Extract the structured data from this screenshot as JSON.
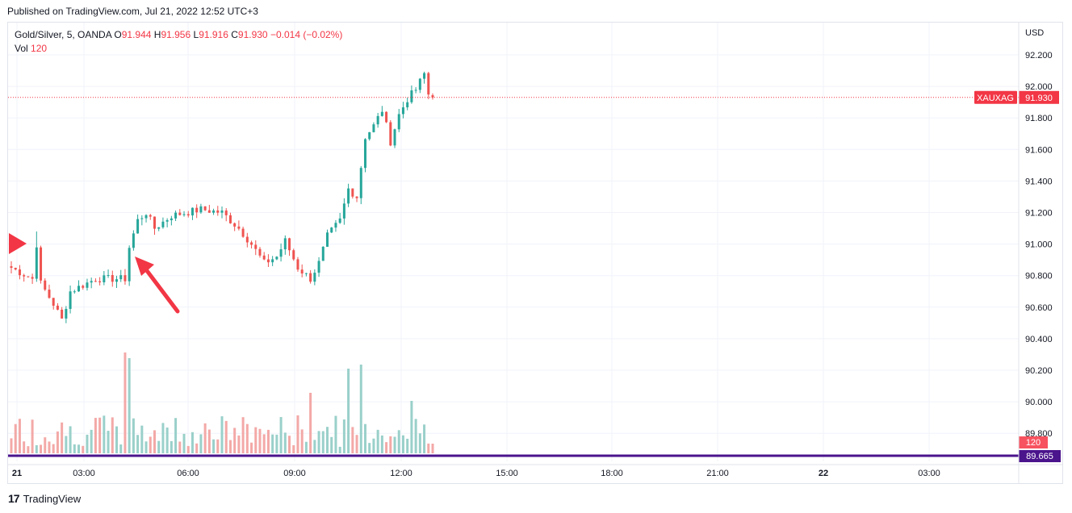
{
  "published": "Published on TradingView.com, Jul 21, 2022 12:52 UTC+3",
  "legend": {
    "symbol": "Gold/Silver, 5, OANDA",
    "o_label": "O",
    "o_value": "91.944",
    "h_label": "H",
    "h_value": "91.956",
    "l_label": "L",
    "l_value": "91.916",
    "c_label": "C",
    "c_value": "91.930",
    "change": "−0.014 (−0.02%)",
    "vol_label": "Vol",
    "vol_value": "120"
  },
  "footer": {
    "brand": "TradingView",
    "logo_text": "17"
  },
  "colors": {
    "up": "#26a69a",
    "down": "#ef5350",
    "up_vol": "#9ad0ca",
    "down_vol": "#f3a9a7",
    "price_tag": "#f23645",
    "purple": "#4a148c",
    "arrow": "#f23645"
  },
  "chart_data": {
    "type": "candlestick",
    "currency": "USD",
    "y_ticks": [
      "92.200",
      "92.000",
      "91.800",
      "91.600",
      "91.400",
      "91.200",
      "91.000",
      "90.800",
      "90.600",
      "90.400",
      "90.200",
      "90.000",
      "89.800"
    ],
    "ylim": [
      89.665,
      92.33
    ],
    "x_ticks": [
      "21",
      "03:00",
      "06:00",
      "09:00",
      "12:00",
      "15:00",
      "18:00",
      "21:00",
      "22",
      "03:00"
    ],
    "last_price": {
      "symbol_tag": "XAUXAG",
      "value": "91.930"
    },
    "volume_tag": "120",
    "purple_line": {
      "value": "89.665"
    },
    "grid": true,
    "waypoints": [
      [
        0,
        90.85
      ],
      [
        5,
        90.78
      ],
      [
        6,
        91.0
      ],
      [
        7,
        90.75
      ],
      [
        10,
        90.62
      ],
      [
        12,
        90.52
      ],
      [
        14,
        90.7
      ],
      [
        20,
        90.78
      ],
      [
        27,
        90.78
      ],
      [
        28,
        90.98
      ],
      [
        30,
        91.15
      ],
      [
        32,
        91.2
      ],
      [
        34,
        91.1
      ],
      [
        38,
        91.18
      ],
      [
        45,
        91.22
      ],
      [
        50,
        91.2
      ],
      [
        54,
        91.1
      ],
      [
        57,
        91.0
      ],
      [
        60,
        90.88
      ],
      [
        63,
        90.92
      ],
      [
        65,
        91.02
      ],
      [
        68,
        90.85
      ],
      [
        71,
        90.78
      ],
      [
        73,
        90.88
      ],
      [
        75,
        91.05
      ],
      [
        78,
        91.15
      ],
      [
        80,
        91.35
      ],
      [
        82,
        91.3
      ],
      [
        84,
        91.68
      ],
      [
        86,
        91.75
      ],
      [
        88,
        91.85
      ],
      [
        90,
        91.65
      ],
      [
        92,
        91.82
      ],
      [
        94,
        91.92
      ],
      [
        96,
        91.98
      ],
      [
        98,
        92.08
      ],
      [
        99,
        91.95
      ],
      [
        100,
        91.93
      ]
    ],
    "last_candle": {
      "open": 91.944,
      "high": 91.956,
      "low": 91.916,
      "close": 91.93
    }
  }
}
